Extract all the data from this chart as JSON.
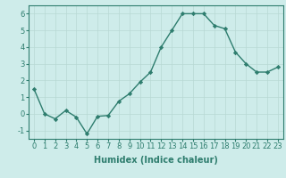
{
  "x": [
    0,
    1,
    2,
    3,
    4,
    5,
    6,
    7,
    8,
    9,
    10,
    11,
    12,
    13,
    14,
    15,
    16,
    17,
    18,
    19,
    20,
    21,
    22,
    23
  ],
  "y": [
    1.5,
    0.0,
    -0.3,
    0.2,
    -0.2,
    -1.2,
    -0.15,
    -0.1,
    0.75,
    1.2,
    1.9,
    2.5,
    4.0,
    5.0,
    6.0,
    6.0,
    6.0,
    5.3,
    5.1,
    3.7,
    3.0,
    2.5,
    2.5,
    2.8
  ],
  "xlabel": "Humidex (Indice chaleur)",
  "xlim": [
    -0.5,
    23.5
  ],
  "ylim": [
    -1.5,
    6.5
  ],
  "yticks": [
    -1,
    0,
    1,
    2,
    3,
    4,
    5,
    6
  ],
  "xticks": [
    0,
    1,
    2,
    3,
    4,
    5,
    6,
    7,
    8,
    9,
    10,
    11,
    12,
    13,
    14,
    15,
    16,
    17,
    18,
    19,
    20,
    21,
    22,
    23
  ],
  "line_color": "#2e7d6e",
  "marker": "D",
  "marker_size": 2.2,
  "line_width": 1.0,
  "bg_color": "#ceecea",
  "grid_color": "#b8d8d4",
  "xlabel_fontsize": 7,
  "tick_fontsize": 6,
  "spine_color": "#2e7d6e"
}
